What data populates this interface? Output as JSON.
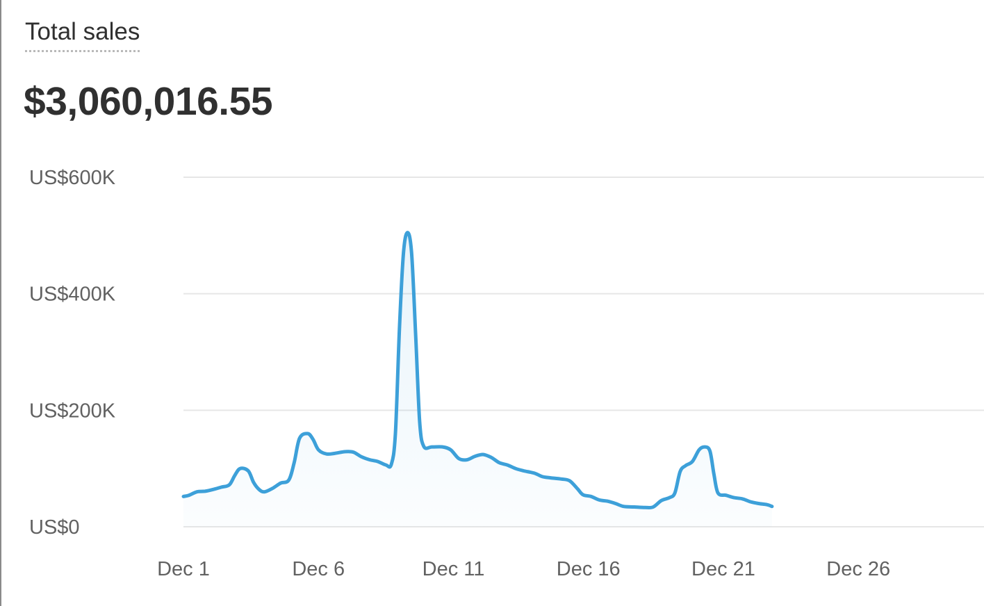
{
  "card": {
    "title": "Total sales",
    "value": "$3,060,016.55"
  },
  "colors": {
    "line": "#3da0d9",
    "fill": "#3da0d9",
    "grid": "#e6e6e6",
    "text": "#303030",
    "axis_text": "#616161"
  },
  "chart_data": {
    "type": "area",
    "title": "",
    "xlabel": "",
    "ylabel": "",
    "ylim": [
      0,
      600000
    ],
    "grid": true,
    "legend": "none",
    "y_ticks": [
      {
        "value": 0,
        "label": "US$0"
      },
      {
        "value": 200000,
        "label": "US$200K"
      },
      {
        "value": 400000,
        "label": "US$400K"
      },
      {
        "value": 600000,
        "label": "US$600K"
      }
    ],
    "x_ticks": [
      {
        "day": 1,
        "label": "Dec 1"
      },
      {
        "day": 6,
        "label": "Dec 6"
      },
      {
        "day": 11,
        "label": "Dec 11"
      },
      {
        "day": 16,
        "label": "Dec 16"
      },
      {
        "day": 21,
        "label": "Dec 21"
      },
      {
        "day": 26,
        "label": "Dec 26"
      }
    ],
    "x_range": [
      1,
      30
    ],
    "series": [
      {
        "points": [
          [
            1.0,
            52000
          ],
          [
            1.2,
            54000
          ],
          [
            1.5,
            60000
          ],
          [
            1.8,
            61000
          ],
          [
            2.1,
            64000
          ],
          [
            2.4,
            68000
          ],
          [
            2.7,
            72000
          ],
          [
            2.9,
            88000
          ],
          [
            3.1,
            100000
          ],
          [
            3.4,
            96000
          ],
          [
            3.6,
            76000
          ],
          [
            3.8,
            64000
          ],
          [
            4.0,
            60000
          ],
          [
            4.3,
            66000
          ],
          [
            4.6,
            75000
          ],
          [
            4.9,
            80000
          ],
          [
            5.1,
            110000
          ],
          [
            5.3,
            152000
          ],
          [
            5.6,
            160000
          ],
          [
            5.8,
            150000
          ],
          [
            6.0,
            132000
          ],
          [
            6.3,
            125000
          ],
          [
            6.6,
            126000
          ],
          [
            7.0,
            129000
          ],
          [
            7.3,
            128000
          ],
          [
            7.6,
            120000
          ],
          [
            7.9,
            115000
          ],
          [
            8.2,
            112000
          ],
          [
            8.5,
            106000
          ],
          [
            8.7,
            107000
          ],
          [
            8.85,
            160000
          ],
          [
            9.0,
            340000
          ],
          [
            9.15,
            470000
          ],
          [
            9.3,
            505000
          ],
          [
            9.45,
            470000
          ],
          [
            9.6,
            330000
          ],
          [
            9.75,
            180000
          ],
          [
            9.9,
            138000
          ],
          [
            10.2,
            137000
          ],
          [
            10.6,
            137000
          ],
          [
            10.9,
            132000
          ],
          [
            11.2,
            117000
          ],
          [
            11.5,
            115000
          ],
          [
            11.8,
            121000
          ],
          [
            12.1,
            124000
          ],
          [
            12.4,
            119000
          ],
          [
            12.7,
            110000
          ],
          [
            13.0,
            106000
          ],
          [
            13.3,
            100000
          ],
          [
            13.6,
            96000
          ],
          [
            14.0,
            92000
          ],
          [
            14.3,
            86000
          ],
          [
            14.6,
            84000
          ],
          [
            15.0,
            82000
          ],
          [
            15.3,
            79000
          ],
          [
            15.6,
            65000
          ],
          [
            15.8,
            55000
          ],
          [
            16.1,
            52000
          ],
          [
            16.4,
            46000
          ],
          [
            16.7,
            44000
          ],
          [
            17.0,
            40000
          ],
          [
            17.3,
            35000
          ],
          [
            17.7,
            34000
          ],
          [
            18.1,
            33000
          ],
          [
            18.4,
            34000
          ],
          [
            18.7,
            45000
          ],
          [
            19.0,
            50000
          ],
          [
            19.2,
            58000
          ],
          [
            19.4,
            95000
          ],
          [
            19.6,
            105000
          ],
          [
            19.85,
            112000
          ],
          [
            20.1,
            132000
          ],
          [
            20.3,
            137000
          ],
          [
            20.5,
            130000
          ],
          [
            20.65,
            90000
          ],
          [
            20.8,
            58000
          ],
          [
            21.1,
            54000
          ],
          [
            21.4,
            50000
          ],
          [
            21.7,
            48000
          ],
          [
            22.0,
            43000
          ],
          [
            22.3,
            40000
          ],
          [
            22.6,
            38000
          ],
          [
            22.8,
            35000
          ]
        ]
      }
    ]
  }
}
